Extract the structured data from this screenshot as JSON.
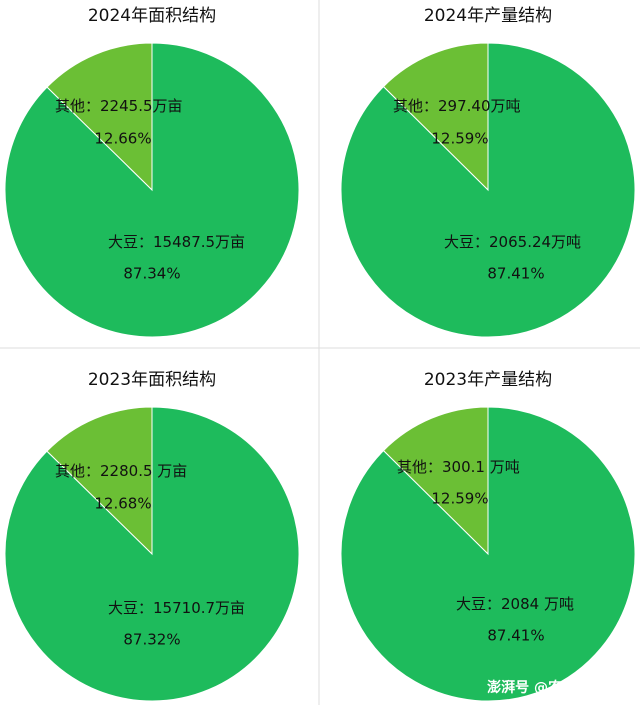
{
  "chart_data": [
    {
      "type": "pie",
      "title": "2024年面积结构",
      "categories": [
        "其他：",
        "大豆："
      ],
      "values": [
        2245.5,
        15487.5
      ],
      "value_labels": [
        "2245.5万亩",
        "15487.5万亩"
      ],
      "percent_labels": [
        "12.66%",
        "87.34%"
      ],
      "colors": [
        "#6bbf35",
        "#1ebb5c"
      ]
    },
    {
      "type": "pie",
      "title": "2024年产量结构",
      "categories": [
        "其他：",
        "大豆："
      ],
      "values": [
        297.4,
        2065.24
      ],
      "value_labels": [
        "297.40万吨",
        "2065.24万吨"
      ],
      "percent_labels": [
        "12.59%",
        "87.41%"
      ],
      "colors": [
        "#6bbf35",
        "#1ebb5c"
      ]
    },
    {
      "type": "pie",
      "title": "2023年面积结构",
      "categories": [
        "其他：",
        "大豆："
      ],
      "values": [
        2280.5,
        15710.7
      ],
      "value_labels": [
        "2280.5 万亩",
        "15710.7万亩"
      ],
      "percent_labels": [
        "12.68%",
        "87.32%"
      ],
      "colors": [
        "#6bbf35",
        "#1ebb5c"
      ]
    },
    {
      "type": "pie",
      "title": "2023年产量结构",
      "categories": [
        "其他：",
        "大豆："
      ],
      "values": [
        300.1,
        2084
      ],
      "value_labels": [
        "300.1 万吨",
        "2084 万吨"
      ],
      "percent_labels": [
        "12.59%",
        "87.41%"
      ],
      "colors": [
        "#6bbf35",
        "#1ebb5c"
      ]
    }
  ],
  "watermark": "澎湃号 @农小蜂数智云"
}
